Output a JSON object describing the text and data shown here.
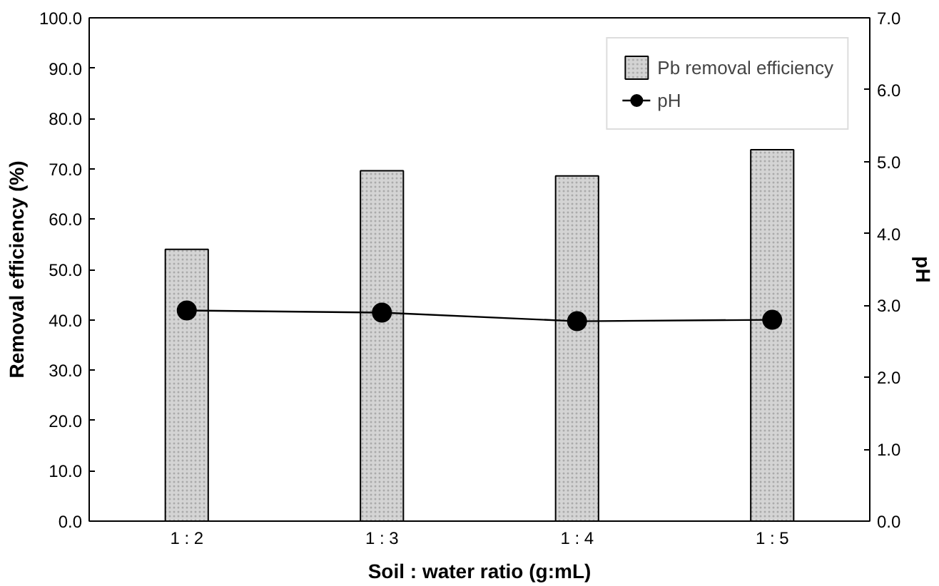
{
  "chart_data": {
    "type": "bar",
    "xlabel": "Soil : water ratio (g:mL)",
    "ylabel": "Removal efficiency (%)",
    "y2label": "pH",
    "categories": [
      "1 : 2",
      "1 : 3",
      "1 : 4",
      "1 : 5"
    ],
    "series": [
      {
        "name": "Pb removal efficiency",
        "color": "#d4d4d4",
        "values": [
          54.0,
          69.6,
          68.6,
          73.8
        ]
      },
      {
        "name": "pH",
        "type": "line",
        "axis": "y2",
        "color": "#000000",
        "marker": "circle",
        "values": [
          2.93,
          2.9,
          2.78,
          2.8
        ]
      }
    ],
    "ylim": [
      0,
      100
    ],
    "yticks": [
      {
        "value": 0,
        "label": "0.0"
      },
      {
        "value": 10,
        "label": "10.0"
      },
      {
        "value": 20,
        "label": "20.0"
      },
      {
        "value": 30,
        "label": "30.0"
      },
      {
        "value": 40,
        "label": "40.0"
      },
      {
        "value": 50,
        "label": "50.0"
      },
      {
        "value": 60,
        "label": "60.0"
      },
      {
        "value": 70,
        "label": "70.0"
      },
      {
        "value": 80,
        "label": "80.0"
      },
      {
        "value": 90,
        "label": "90.0"
      },
      {
        "value": 100,
        "label": "100.0"
      }
    ],
    "y2lim": [
      0,
      7
    ],
    "y2ticks": [
      {
        "value": 0,
        "label": "0.0"
      },
      {
        "value": 1,
        "label": "1.0"
      },
      {
        "value": 2,
        "label": "2.0"
      },
      {
        "value": 3,
        "label": "3.0"
      },
      {
        "value": 4,
        "label": "4.0"
      },
      {
        "value": 5,
        "label": "5.0"
      },
      {
        "value": 6,
        "label": "6.0"
      },
      {
        "value": 7,
        "label": "7.0"
      }
    ],
    "grid": false,
    "legend": "top right"
  }
}
